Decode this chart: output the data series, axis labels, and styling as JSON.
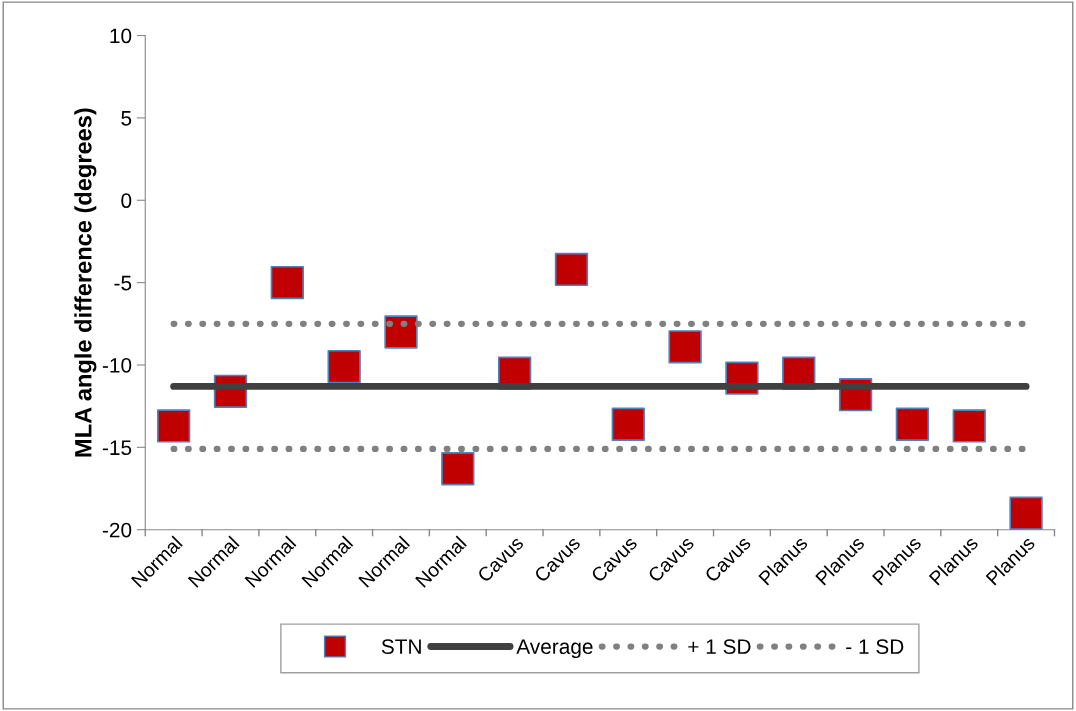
{
  "chart_data": {
    "type": "scatter",
    "ylabel": "MLA angle difference (degrees)",
    "categories": [
      "Normal",
      "Normal",
      "Normal",
      "Normal",
      "Normal",
      "Normal",
      "Cavus",
      "Cavus",
      "Cavus",
      "Cavus",
      "Cavus",
      "Planus",
      "Planus",
      "Planus",
      "Planus",
      "Planus"
    ],
    "series": [
      {
        "name": "STN",
        "marker": "square",
        "color": "#c00000",
        "values": [
          -13.7,
          -11.6,
          -5.0,
          -10.1,
          -8.0,
          -16.3,
          -10.5,
          -4.2,
          -13.6,
          -8.9,
          -10.8,
          -10.5,
          -11.8,
          -13.6,
          -13.7,
          -19.0
        ]
      }
    ],
    "ref_lines": [
      {
        "axis": "y",
        "value": -11.3,
        "label": "Average",
        "color": "#404040",
        "line_style": "solid"
      },
      {
        "axis": "y",
        "value": -7.5,
        "label": "+ 1 SD",
        "color": "#808080",
        "line_style": "dotted"
      },
      {
        "axis": "y",
        "value": -15.1,
        "label": "- 1 SD",
        "color": "#808080",
        "line_style": "dotted"
      }
    ],
    "ylim": [
      -20,
      10
    ],
    "yticks": [
      -20,
      -15,
      -10,
      -5,
      0,
      5,
      10
    ],
    "grid": false,
    "legend": "bottom"
  }
}
